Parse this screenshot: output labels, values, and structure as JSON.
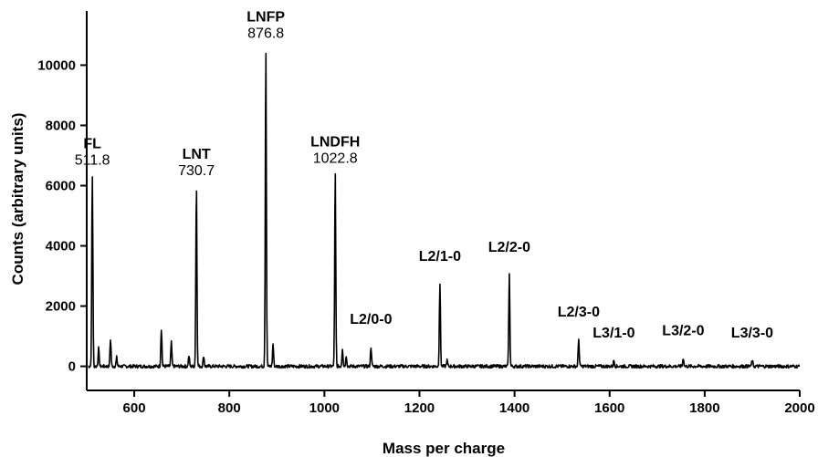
{
  "chart_data": {
    "type": "line",
    "title": "",
    "xlabel": "Mass per charge",
    "ylabel": "Counts (arbitrary units)",
    "xlim": [
      500,
      2000
    ],
    "ylim": [
      -800,
      11800
    ],
    "x_ticks": [
      600,
      800,
      1000,
      1200,
      1400,
      1600,
      1800,
      2000
    ],
    "y_ticks": [
      0,
      2000,
      4000,
      6000,
      8000,
      10000
    ],
    "grid": false,
    "legend": "none",
    "baseline": 0,
    "peaks": [
      {
        "x": 511.8,
        "y": 6400
      },
      {
        "x": 525,
        "y": 600
      },
      {
        "x": 550,
        "y": 900
      },
      {
        "x": 563,
        "y": 300
      },
      {
        "x": 657,
        "y": 1250
      },
      {
        "x": 678,
        "y": 800
      },
      {
        "x": 715,
        "y": 350
      },
      {
        "x": 730.7,
        "y": 6050
      },
      {
        "x": 746,
        "y": 350
      },
      {
        "x": 876.8,
        "y": 10600
      },
      {
        "x": 892,
        "y": 750
      },
      {
        "x": 1022.8,
        "y": 6450
      },
      {
        "x": 1038,
        "y": 600
      },
      {
        "x": 1046,
        "y": 350
      },
      {
        "x": 1098,
        "y": 650
      },
      {
        "x": 1243,
        "y": 2750
      },
      {
        "x": 1258,
        "y": 200
      },
      {
        "x": 1389,
        "y": 3050
      },
      {
        "x": 1535,
        "y": 900
      },
      {
        "x": 1609,
        "y": 200
      },
      {
        "x": 1755,
        "y": 280
      },
      {
        "x": 1900,
        "y": 200
      }
    ],
    "annotations": [
      {
        "name": "FL",
        "mass": "511.8",
        "x": 511.8,
        "y": 6400
      },
      {
        "name": "LNT",
        "mass": "730.7",
        "x": 730.7,
        "y": 6050
      },
      {
        "name": "LNFP",
        "mass": "876.8",
        "x": 876.8,
        "y": 10600
      },
      {
        "name": "LNDFH",
        "mass": "1022.8",
        "x": 1022.8,
        "y": 6450
      },
      {
        "name": "L2/0-0",
        "mass": "",
        "x": 1098,
        "y": 650
      },
      {
        "name": "L2/1-0",
        "mass": "",
        "x": 1243,
        "y": 2750
      },
      {
        "name": "L2/2-0",
        "mass": "",
        "x": 1389,
        "y": 3050
      },
      {
        "name": "L2/3-0",
        "mass": "",
        "x": 1535,
        "y": 900
      },
      {
        "name": "L3/1-0",
        "mass": "",
        "x": 1609,
        "y": 200
      },
      {
        "name": "L3/2-0",
        "mass": "",
        "x": 1755,
        "y": 280
      },
      {
        "name": "L3/3-0",
        "mass": "",
        "x": 1900,
        "y": 200
      }
    ]
  }
}
